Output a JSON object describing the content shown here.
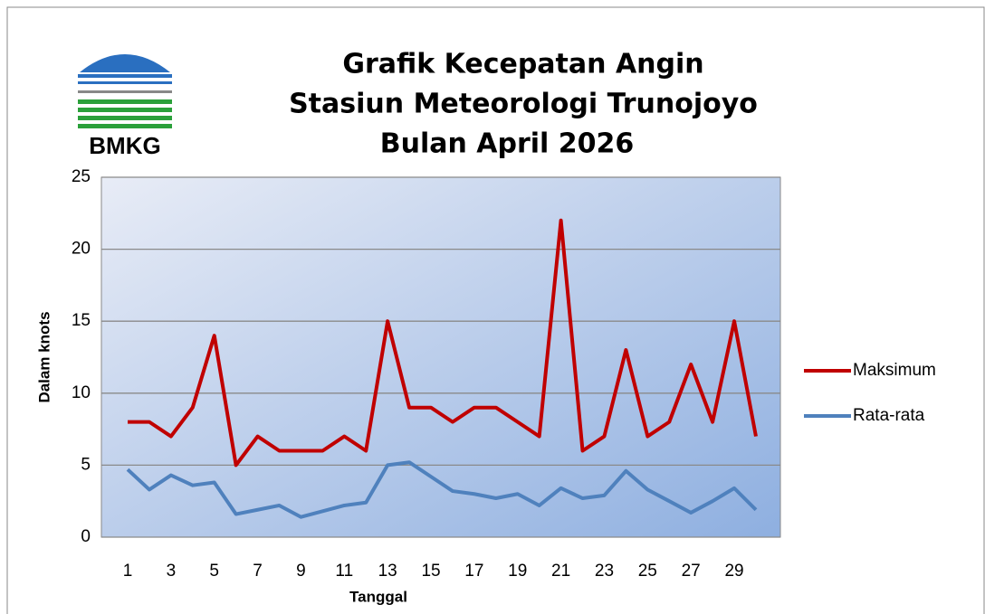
{
  "logo": "BMKG",
  "chart_data": {
    "type": "line",
    "title": [
      "Grafik Kecepatan Angin",
      "Stasiun Meteorologi Trunojoyo",
      "Bulan April 2026"
    ],
    "x_label": "Tanggal",
    "y_label": "Dalam knots",
    "categories": [
      "1",
      null,
      "3",
      null,
      "5",
      null,
      "7",
      null,
      "9",
      null,
      "11",
      null,
      "13",
      null,
      "15",
      null,
      "17",
      null,
      "19",
      null,
      "21",
      null,
      "23",
      null,
      "25",
      null,
      "27",
      null,
      "29",
      null
    ],
    "series": [
      {
        "name": "Maksimum",
        "color": "#c00000",
        "values": [
          8,
          8,
          7,
          9,
          14,
          5,
          7,
          6,
          6,
          6,
          7,
          6,
          15,
          9,
          9,
          8,
          9,
          9,
          8,
          7,
          22,
          6,
          7,
          13,
          7,
          8,
          12,
          8,
          15,
          7
        ]
      },
      {
        "name": "Rata-rata",
        "color": "#4f81bd",
        "values": [
          4.7,
          3.3,
          4.3,
          3.6,
          3.8,
          1.6,
          1.9,
          2.2,
          1.4,
          1.8,
          2.2,
          2.4,
          5.0,
          5.2,
          4.2,
          3.2,
          3.0,
          2.7,
          3.0,
          2.2,
          3.4,
          2.7,
          2.9,
          4.6,
          3.3,
          2.5,
          1.7,
          2.5,
          3.4,
          1.9
        ]
      }
    ],
    "ylim": [
      0,
      25
    ],
    "yticks": [
      0,
      5,
      10,
      15,
      20,
      25
    ],
    "grid": true,
    "legend": "right"
  }
}
